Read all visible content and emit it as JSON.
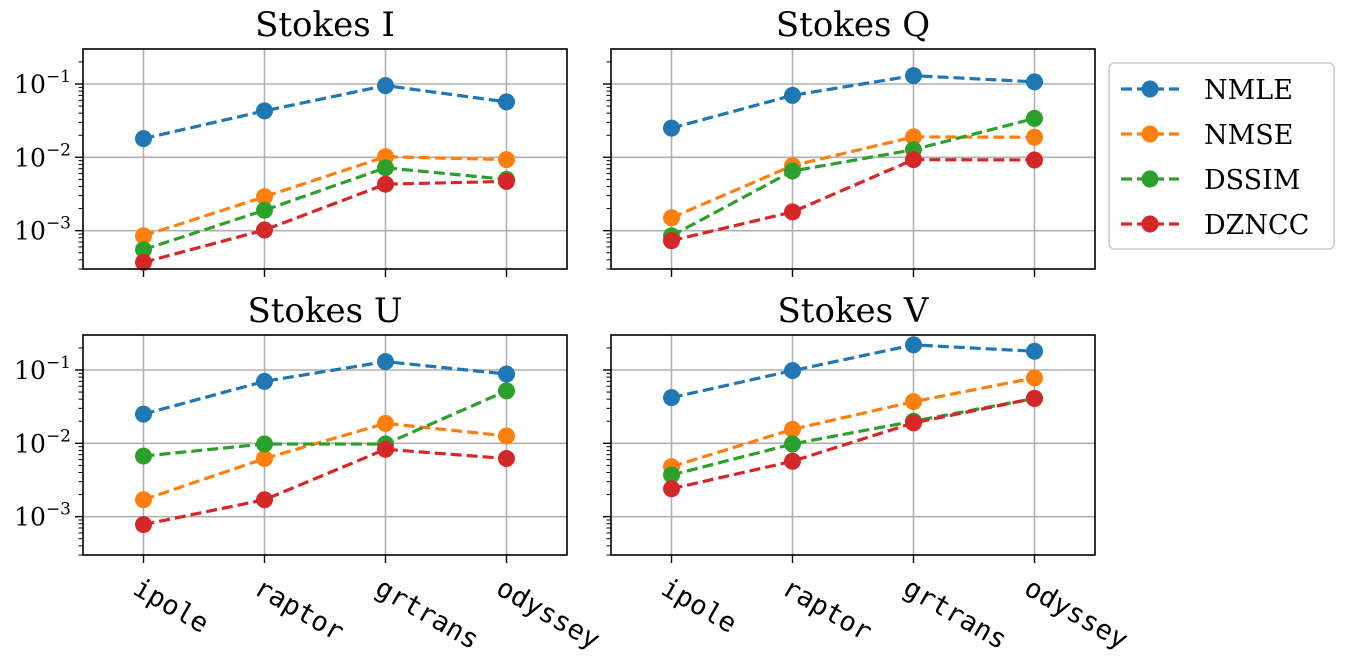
{
  "chart_data": {
    "type": "line",
    "yscale": "log",
    "ylim": [
      0.0003,
      0.3
    ],
    "grid": true,
    "legend_position": "right",
    "colors": {
      "NMLE": "#1f77b4",
      "NMSE": "#ff7f0e",
      "DSSIM": "#2ca02c",
      "DZNCC": "#d62728"
    },
    "y_ticks": [
      {
        "value": 0.1,
        "base": "10",
        "exp": "−1"
      },
      {
        "value": 0.01,
        "base": "10",
        "exp": "−2"
      },
      {
        "value": 0.001,
        "base": "10",
        "exp": "−3"
      }
    ],
    "categories": [
      "ipole",
      "raptor",
      "grtrans",
      "odyssey"
    ],
    "legend": [
      "NMLE",
      "NMSE",
      "DSSIM",
      "DZNCC"
    ],
    "panels": [
      {
        "title": "Stokes I",
        "series": [
          {
            "name": "NMLE",
            "values": [
              0.018,
              0.043,
              0.095,
              0.057
            ]
          },
          {
            "name": "NMSE",
            "values": [
              0.00085,
              0.0029,
              0.0102,
              0.0093
            ]
          },
          {
            "name": "DSSIM",
            "values": [
              0.00055,
              0.0019,
              0.0072,
              0.005
            ]
          },
          {
            "name": "DZNCC",
            "values": [
              0.00037,
              0.00102,
              0.0043,
              0.0047
            ]
          }
        ]
      },
      {
        "title": "Stokes Q",
        "series": [
          {
            "name": "NMLE",
            "values": [
              0.025,
              0.07,
              0.13,
              0.107
            ]
          },
          {
            "name": "NMSE",
            "values": [
              0.0015,
              0.0077,
              0.019,
              0.0188
            ]
          },
          {
            "name": "DSSIM",
            "values": [
              0.00085,
              0.0065,
              0.0127,
              0.034
            ]
          },
          {
            "name": "DZNCC",
            "values": [
              0.00073,
              0.0018,
              0.0093,
              0.0092
            ]
          }
        ]
      },
      {
        "title": "Stokes U",
        "series": [
          {
            "name": "NMLE",
            "values": [
              0.025,
              0.07,
              0.13,
              0.088
            ]
          },
          {
            "name": "NMSE",
            "values": [
              0.0017,
              0.0062,
              0.0187,
              0.0126
            ]
          },
          {
            "name": "DSSIM",
            "values": [
              0.0067,
              0.0098,
              0.0098,
              0.052
            ]
          },
          {
            "name": "DZNCC",
            "values": [
              0.00078,
              0.0017,
              0.0083,
              0.0062
            ]
          }
        ]
      },
      {
        "title": "Stokes V",
        "series": [
          {
            "name": "NMLE",
            "values": [
              0.042,
              0.098,
              0.22,
              0.18
            ]
          },
          {
            "name": "NMSE",
            "values": [
              0.0048,
              0.0155,
              0.037,
              0.078
            ]
          },
          {
            "name": "DSSIM",
            "values": [
              0.0037,
              0.0098,
              0.02,
              0.041
            ]
          },
          {
            "name": "DZNCC",
            "values": [
              0.0024,
              0.0057,
              0.019,
              0.041
            ]
          }
        ]
      }
    ]
  }
}
